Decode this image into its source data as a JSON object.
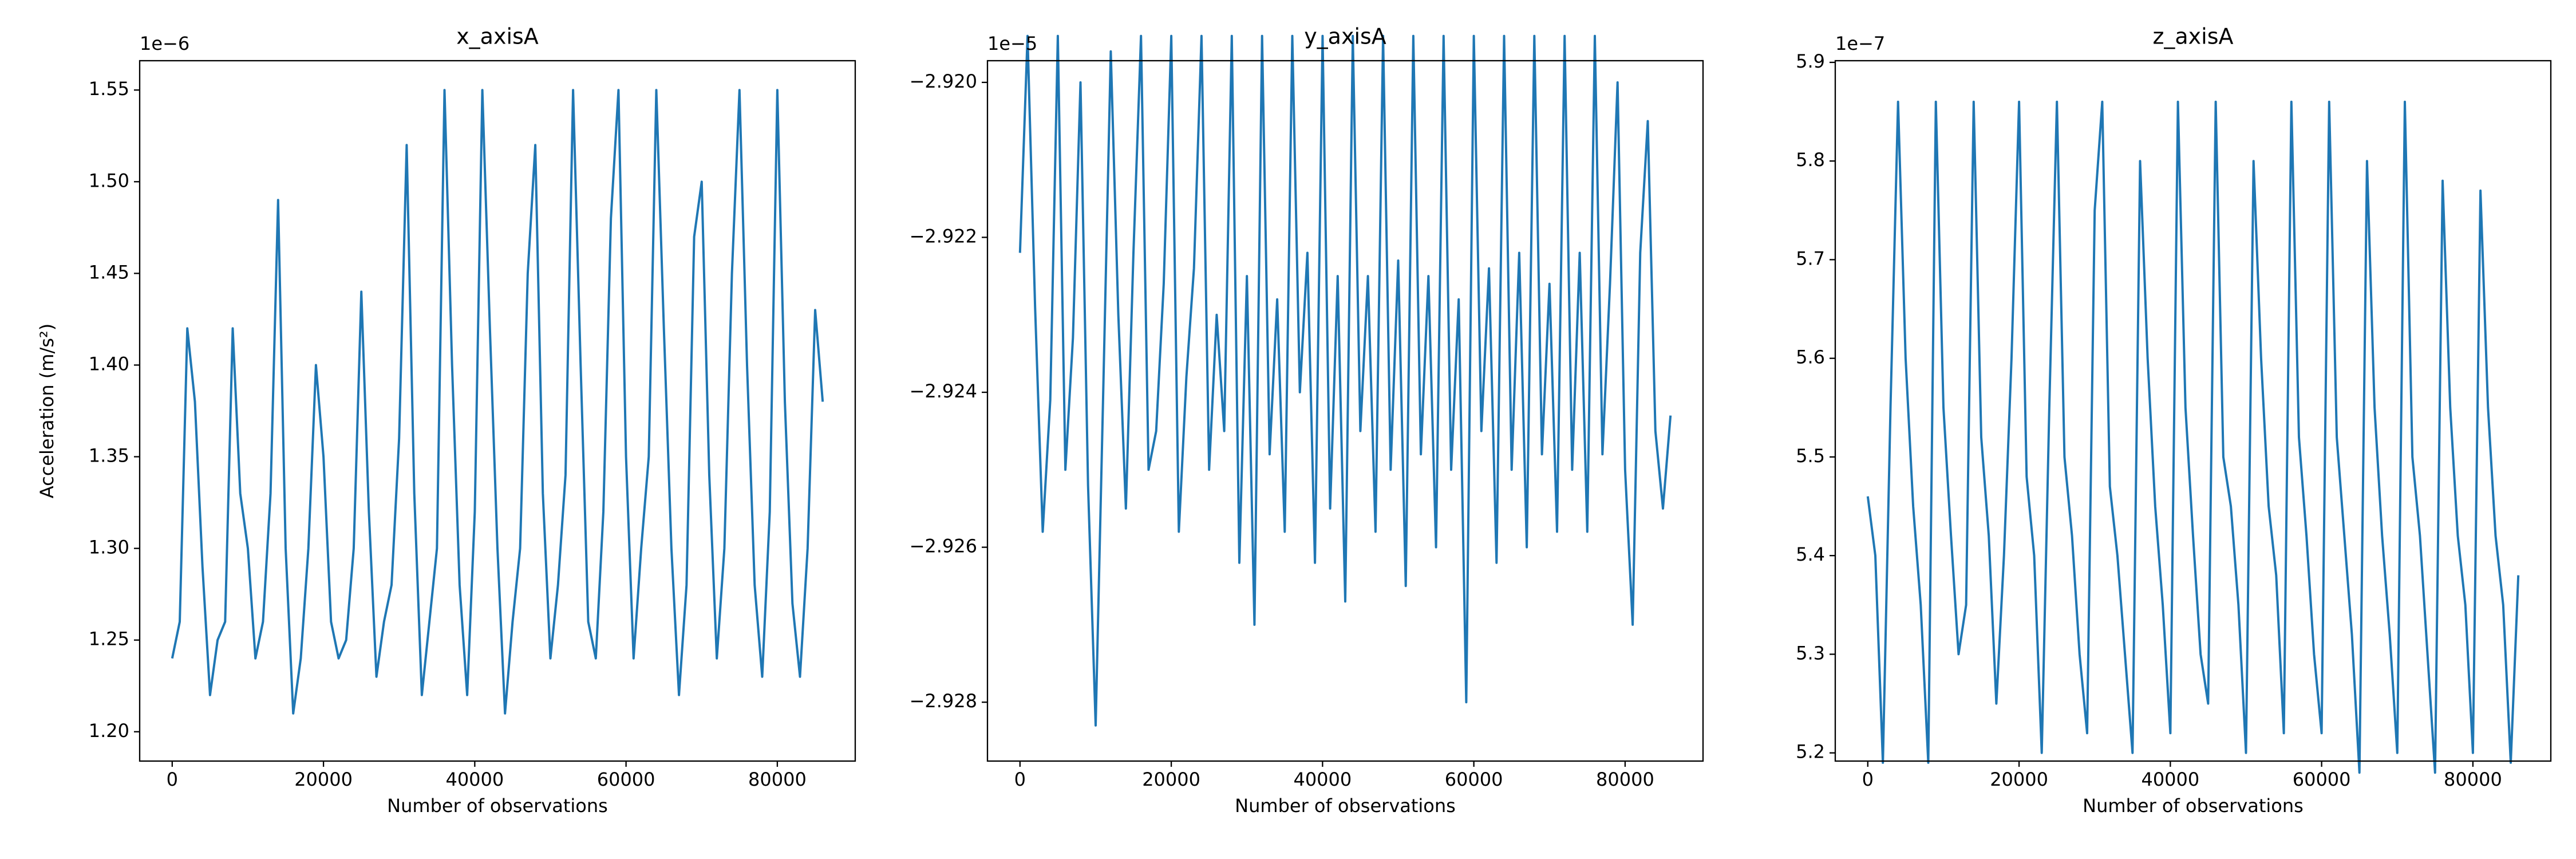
{
  "chart_data": [
    {
      "type": "line",
      "title": "x_axisA",
      "xlabel": "Number of observations",
      "ylabel": "Acceleration (m/s²)",
      "offset_text": "1e−6",
      "x": [
        0,
        1000,
        2000,
        3000,
        4000,
        5000,
        6000,
        7000,
        8000,
        9000,
        10000,
        11000,
        12000,
        13000,
        14000,
        15000,
        16000,
        17000,
        18000,
        19000,
        20000,
        21000,
        22000,
        23000,
        24000,
        25000,
        26000,
        27000,
        28000,
        29000,
        30000,
        31000,
        32000,
        33000,
        34000,
        35000,
        36000,
        37000,
        38000,
        39000,
        40000,
        41000,
        42000,
        43000,
        44000,
        45000,
        46000,
        47000,
        48000,
        49000,
        50000,
        51000,
        52000,
        53000,
        54000,
        55000,
        56000,
        57000,
        58000,
        59000,
        60000,
        61000,
        62000,
        63000,
        64000,
        65000,
        66000,
        67000,
        68000,
        69000,
        70000,
        71000,
        72000,
        73000,
        74000,
        75000,
        76000,
        77000,
        78000,
        79000,
        80000,
        81000,
        82000,
        83000,
        84000,
        85000,
        86000
      ],
      "series": [
        {
          "color": "#1f77b4",
          "values": [
            1.24e-06,
            1.26e-06,
            1.42e-06,
            1.38e-06,
            1.29e-06,
            1.22e-06,
            1.25e-06,
            1.26e-06,
            1.42e-06,
            1.33e-06,
            1.3e-06,
            1.24e-06,
            1.26e-06,
            1.33e-06,
            1.49e-06,
            1.3e-06,
            1.21e-06,
            1.24e-06,
            1.3e-06,
            1.4e-06,
            1.35e-06,
            1.26e-06,
            1.24e-06,
            1.25e-06,
            1.3e-06,
            1.44e-06,
            1.32e-06,
            1.23e-06,
            1.26e-06,
            1.28e-06,
            1.36e-06,
            1.52e-06,
            1.33e-06,
            1.22e-06,
            1.26e-06,
            1.3e-06,
            1.55e-06,
            1.4e-06,
            1.28e-06,
            1.22e-06,
            1.32e-06,
            1.55e-06,
            1.42e-06,
            1.3e-06,
            1.21e-06,
            1.26e-06,
            1.3e-06,
            1.45e-06,
            1.52e-06,
            1.33e-06,
            1.24e-06,
            1.28e-06,
            1.34e-06,
            1.55e-06,
            1.4e-06,
            1.26e-06,
            1.24e-06,
            1.32e-06,
            1.48e-06,
            1.55e-06,
            1.35e-06,
            1.24e-06,
            1.3e-06,
            1.35e-06,
            1.55e-06,
            1.42e-06,
            1.3e-06,
            1.22e-06,
            1.28e-06,
            1.47e-06,
            1.5e-06,
            1.34e-06,
            1.24e-06,
            1.3e-06,
            1.45e-06,
            1.55e-06,
            1.4e-06,
            1.28e-06,
            1.23e-06,
            1.32e-06,
            1.55e-06,
            1.38e-06,
            1.27e-06,
            1.23e-06,
            1.3e-06,
            1.43e-06,
            1.38e-06
          ]
        }
      ],
      "xlim": [
        -4300,
        90300
      ],
      "xticks": [
        0,
        20000,
        40000,
        60000,
        80000
      ],
      "ylim": [
        1.184e-06,
        1.566e-06
      ],
      "yticks": [
        {
          "value": 1.2e-06,
          "label": "1.20"
        },
        {
          "value": 1.25e-06,
          "label": "1.25"
        },
        {
          "value": 1.3e-06,
          "label": "1.30"
        },
        {
          "value": 1.35e-06,
          "label": "1.35"
        },
        {
          "value": 1.4e-06,
          "label": "1.40"
        },
        {
          "value": 1.45e-06,
          "label": "1.45"
        },
        {
          "value": 1.5e-06,
          "label": "1.50"
        },
        {
          "value": 1.55e-06,
          "label": "1.55"
        }
      ]
    },
    {
      "type": "line",
      "title": "y_axisA",
      "xlabel": "Number of observations",
      "offset_text": "1e−5",
      "x": [
        0,
        1000,
        2000,
        3000,
        4000,
        5000,
        6000,
        7000,
        8000,
        9000,
        10000,
        11000,
        12000,
        13000,
        14000,
        15000,
        16000,
        17000,
        18000,
        19000,
        20000,
        21000,
        22000,
        23000,
        24000,
        25000,
        26000,
        27000,
        28000,
        29000,
        30000,
        31000,
        32000,
        33000,
        34000,
        35000,
        36000,
        37000,
        38000,
        39000,
        40000,
        41000,
        42000,
        43000,
        44000,
        45000,
        46000,
        47000,
        48000,
        49000,
        50000,
        51000,
        52000,
        53000,
        54000,
        55000,
        56000,
        57000,
        58000,
        59000,
        60000,
        61000,
        62000,
        63000,
        64000,
        65000,
        66000,
        67000,
        68000,
        69000,
        70000,
        71000,
        72000,
        73000,
        74000,
        75000,
        76000,
        77000,
        78000,
        79000,
        80000,
        81000,
        82000,
        83000,
        84000,
        85000,
        86000
      ],
      "series": [
        {
          "color": "#1f77b4",
          "values": [
            -2.9222e-05,
            -2.9194e-05,
            -2.9229e-05,
            -2.9258e-05,
            -2.9241e-05,
            -2.9194e-05,
            -2.925e-05,
            -2.9233e-05,
            -2.92e-05,
            -2.9252e-05,
            -2.9283e-05,
            -2.924e-05,
            -2.9196e-05,
            -2.923e-05,
            -2.9255e-05,
            -2.9222e-05,
            -2.9194e-05,
            -2.925e-05,
            -2.9245e-05,
            -2.9226e-05,
            -2.9194e-05,
            -2.9258e-05,
            -2.9238e-05,
            -2.9224e-05,
            -2.9194e-05,
            -2.925e-05,
            -2.923e-05,
            -2.9245e-05,
            -2.9194e-05,
            -2.9262e-05,
            -2.9225e-05,
            -2.927e-05,
            -2.9194e-05,
            -2.9248e-05,
            -2.9228e-05,
            -2.9258e-05,
            -2.9194e-05,
            -2.924e-05,
            -2.9222e-05,
            -2.9262e-05,
            -2.9194e-05,
            -2.9255e-05,
            -2.9225e-05,
            -2.9267e-05,
            -2.9194e-05,
            -2.9245e-05,
            -2.9225e-05,
            -2.9258e-05,
            -2.9194e-05,
            -2.925e-05,
            -2.9223e-05,
            -2.9265e-05,
            -2.9194e-05,
            -2.9248e-05,
            -2.9225e-05,
            -2.926e-05,
            -2.9194e-05,
            -2.925e-05,
            -2.9228e-05,
            -2.928e-05,
            -2.9194e-05,
            -2.9245e-05,
            -2.9224e-05,
            -2.9262e-05,
            -2.9194e-05,
            -2.925e-05,
            -2.9222e-05,
            -2.926e-05,
            -2.9194e-05,
            -2.9248e-05,
            -2.9226e-05,
            -2.9258e-05,
            -2.9194e-05,
            -2.925e-05,
            -2.9222e-05,
            -2.9258e-05,
            -2.9194e-05,
            -2.9248e-05,
            -2.9226e-05,
            -2.92e-05,
            -2.925e-05,
            -2.927e-05,
            -2.9222e-05,
            -2.9205e-05,
            -2.9245e-05,
            -2.9255e-05,
            -2.9243e-05
          ]
        }
      ],
      "xlim": [
        -4300,
        90300
      ],
      "xticks": [
        0,
        20000,
        40000,
        60000,
        80000
      ],
      "ylim": [
        -2.92876e-05,
        -2.91972e-05
      ],
      "yticks": [
        {
          "value": -2.928e-05,
          "label": "−2.928"
        },
        {
          "value": -2.926e-05,
          "label": "−2.926"
        },
        {
          "value": -2.924e-05,
          "label": "−2.924"
        },
        {
          "value": -2.922e-05,
          "label": "−2.922"
        },
        {
          "value": -2.92e-05,
          "label": "−2.920"
        }
      ]
    },
    {
      "type": "line",
      "title": "z_axisA",
      "xlabel": "Number of observations",
      "offset_text": "1e−7",
      "x": [
        0,
        1000,
        2000,
        3000,
        4000,
        5000,
        6000,
        7000,
        8000,
        9000,
        10000,
        11000,
        12000,
        13000,
        14000,
        15000,
        16000,
        17000,
        18000,
        19000,
        20000,
        21000,
        22000,
        23000,
        24000,
        25000,
        26000,
        27000,
        28000,
        29000,
        30000,
        31000,
        32000,
        33000,
        34000,
        35000,
        36000,
        37000,
        38000,
        39000,
        40000,
        41000,
        42000,
        43000,
        44000,
        45000,
        46000,
        47000,
        48000,
        49000,
        50000,
        51000,
        52000,
        53000,
        54000,
        55000,
        56000,
        57000,
        58000,
        59000,
        60000,
        61000,
        62000,
        63000,
        64000,
        65000,
        66000,
        67000,
        68000,
        69000,
        70000,
        71000,
        72000,
        73000,
        74000,
        75000,
        76000,
        77000,
        78000,
        79000,
        80000,
        81000,
        82000,
        83000,
        84000,
        85000,
        86000
      ],
      "series": [
        {
          "color": "#1f77b4",
          "values": [
            5.46e-07,
            5.4e-07,
            5.19e-07,
            5.55e-07,
            5.86e-07,
            5.6e-07,
            5.45e-07,
            5.35e-07,
            5.19e-07,
            5.86e-07,
            5.55e-07,
            5.42e-07,
            5.3e-07,
            5.35e-07,
            5.86e-07,
            5.52e-07,
            5.42e-07,
            5.25e-07,
            5.4e-07,
            5.6e-07,
            5.86e-07,
            5.48e-07,
            5.4e-07,
            5.2e-07,
            5.55e-07,
            5.86e-07,
            5.5e-07,
            5.42e-07,
            5.3e-07,
            5.22e-07,
            5.75e-07,
            5.86e-07,
            5.47e-07,
            5.4e-07,
            5.3e-07,
            5.2e-07,
            5.8e-07,
            5.6e-07,
            5.45e-07,
            5.35e-07,
            5.22e-07,
            5.86e-07,
            5.55e-07,
            5.42e-07,
            5.3e-07,
            5.25e-07,
            5.86e-07,
            5.5e-07,
            5.45e-07,
            5.35e-07,
            5.2e-07,
            5.8e-07,
            5.6e-07,
            5.45e-07,
            5.38e-07,
            5.22e-07,
            5.86e-07,
            5.52e-07,
            5.42e-07,
            5.3e-07,
            5.22e-07,
            5.86e-07,
            5.52e-07,
            5.42e-07,
            5.32e-07,
            5.18e-07,
            5.8e-07,
            5.55e-07,
            5.42e-07,
            5.32e-07,
            5.2e-07,
            5.86e-07,
            5.5e-07,
            5.42e-07,
            5.3e-07,
            5.18e-07,
            5.78e-07,
            5.55e-07,
            5.42e-07,
            5.35e-07,
            5.2e-07,
            5.77e-07,
            5.55e-07,
            5.42e-07,
            5.35e-07,
            5.19e-07,
            5.38e-07
          ]
        }
      ],
      "xlim": [
        -4300,
        90300
      ],
      "xticks": [
        0,
        20000,
        40000,
        60000,
        80000
      ],
      "ylim": [
        5.1917e-07,
        5.9017e-07
      ],
      "yticks": [
        {
          "value": 5.2e-07,
          "label": "5.2"
        },
        {
          "value": 5.3e-07,
          "label": "5.3"
        },
        {
          "value": 5.4e-07,
          "label": "5.4"
        },
        {
          "value": 5.5e-07,
          "label": "5.5"
        },
        {
          "value": 5.6e-07,
          "label": "5.6"
        },
        {
          "value": 5.7e-07,
          "label": "5.7"
        },
        {
          "value": 5.8e-07,
          "label": "5.8"
        },
        {
          "value": 5.9e-07,
          "label": "5.9"
        }
      ]
    }
  ]
}
